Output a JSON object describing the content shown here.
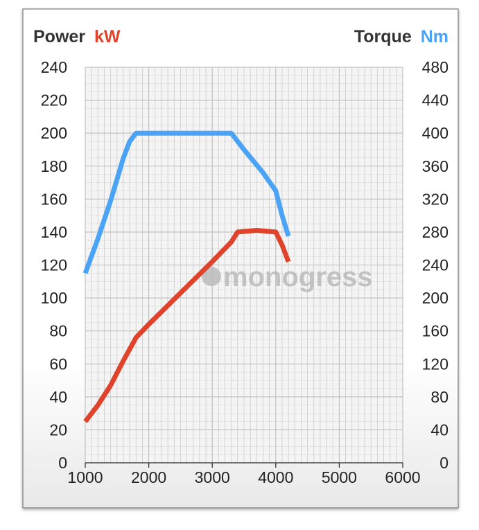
{
  "chart_data": {
    "type": "line",
    "left_axis": {
      "label": "Power",
      "unit": "kW",
      "min": 0,
      "max": 240,
      "ticks": [
        0,
        20,
        40,
        60,
        80,
        100,
        120,
        140,
        160,
        180,
        200,
        220,
        240
      ]
    },
    "right_axis": {
      "label": "Torque",
      "unit": "Nm",
      "min": 0,
      "max": 480,
      "ticks": [
        0,
        40,
        80,
        120,
        160,
        200,
        240,
        280,
        320,
        360,
        400,
        440,
        480
      ]
    },
    "x_axis": {
      "min": 1000,
      "max": 6000,
      "ticks": [
        1000,
        2000,
        3000,
        4000,
        5000,
        6000
      ]
    },
    "grid": true,
    "watermark": "monogress",
    "series": [
      {
        "axis": "right",
        "color": "#4aa3f5",
        "points": [
          [
            1000,
            230
          ],
          [
            1200,
            272
          ],
          [
            1400,
            318
          ],
          [
            1600,
            370
          ],
          [
            1700,
            390
          ],
          [
            1800,
            400
          ],
          [
            2000,
            400
          ],
          [
            2500,
            400
          ],
          [
            3000,
            400
          ],
          [
            3300,
            400
          ],
          [
            3500,
            380
          ],
          [
            3800,
            352
          ],
          [
            4000,
            330
          ],
          [
            4100,
            300
          ],
          [
            4200,
            275
          ]
        ]
      },
      {
        "axis": "left",
        "color": "#e0432b",
        "points": [
          [
            1000,
            25
          ],
          [
            1200,
            35
          ],
          [
            1400,
            47
          ],
          [
            1600,
            62
          ],
          [
            1800,
            76
          ],
          [
            2000,
            84
          ],
          [
            2500,
            103
          ],
          [
            3000,
            122
          ],
          [
            3300,
            134
          ],
          [
            3400,
            140
          ],
          [
            3700,
            141
          ],
          [
            4000,
            140
          ],
          [
            4100,
            132
          ],
          [
            4200,
            122
          ]
        ]
      }
    ]
  }
}
